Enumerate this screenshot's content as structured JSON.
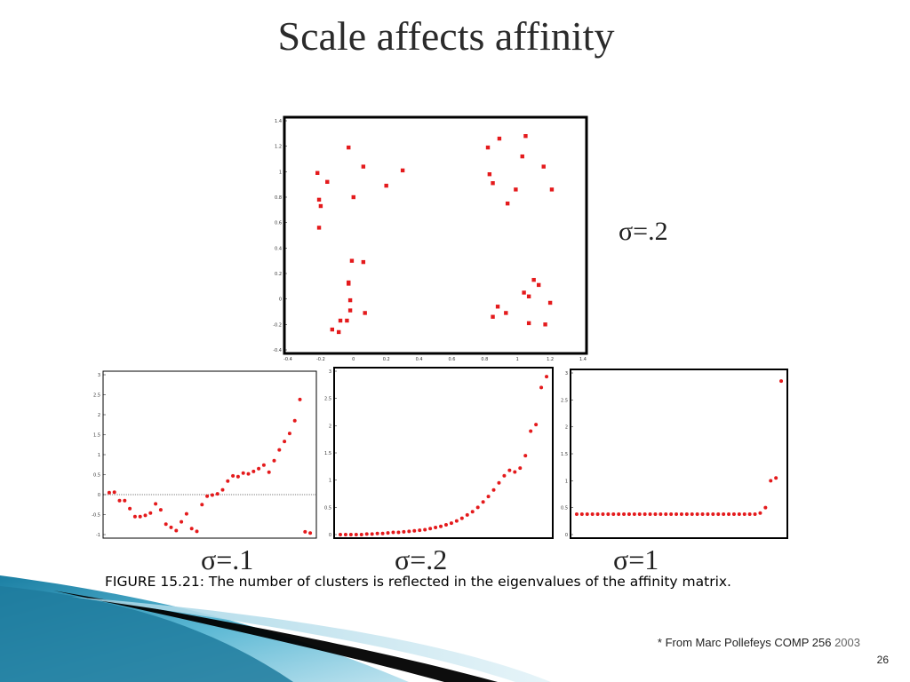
{
  "slide": {
    "title": "Scale affects affinity",
    "caption": "FIGURE 15.21: The number of clusters is reflected in the eigenvalues of the affinity matrix.",
    "credit": "* From Marc Pollefeys COMP 256",
    "credit_year": "2003",
    "page_number": "26"
  },
  "labels": {
    "main_sigma": "σ=.2",
    "sub_sigmas": [
      "σ=.1",
      "σ=.2",
      "σ=1"
    ]
  },
  "colors": {
    "points": "#e41a1c",
    "axis": "#000000"
  },
  "chart_data": [
    {
      "type": "scatter",
      "title": "",
      "xlim": [
        -0.4,
        1.4
      ],
      "ylim": [
        -0.4,
        1.4
      ],
      "x_ticks": [
        "-0.4",
        "-0.2",
        "0",
        "0.2",
        "0.4",
        "0.6",
        "0.8",
        "1",
        "1.2",
        "1.4"
      ],
      "y_ticks": [
        "-0.4",
        "-0.2",
        "0",
        "0.2",
        "0.4",
        "0.6",
        "0.8",
        "1",
        "1.2",
        "1.4"
      ],
      "points": [
        {
          "x": -0.22,
          "y": 0.99
        },
        {
          "x": -0.21,
          "y": 0.78
        },
        {
          "x": -0.2,
          "y": 0.73
        },
        {
          "x": -0.21,
          "y": 0.56
        },
        {
          "x": -0.16,
          "y": 0.92
        },
        {
          "x": -0.03,
          "y": 1.19
        },
        {
          "x": 0.0,
          "y": 0.8
        },
        {
          "x": 0.06,
          "y": 1.04
        },
        {
          "x": 0.2,
          "y": 0.89
        },
        {
          "x": 0.3,
          "y": 1.01
        },
        {
          "x": 0.82,
          "y": 1.19
        },
        {
          "x": 0.89,
          "y": 1.26
        },
        {
          "x": 0.83,
          "y": 0.98
        },
        {
          "x": 0.85,
          "y": 0.91
        },
        {
          "x": 1.03,
          "y": 1.12
        },
        {
          "x": 1.05,
          "y": 1.28
        },
        {
          "x": 1.16,
          "y": 1.04
        },
        {
          "x": 0.99,
          "y": 0.86
        },
        {
          "x": 0.94,
          "y": 0.75
        },
        {
          "x": 1.21,
          "y": 0.86
        },
        {
          "x": -0.13,
          "y": -0.24
        },
        {
          "x": -0.09,
          "y": -0.26
        },
        {
          "x": -0.08,
          "y": -0.17
        },
        {
          "x": -0.04,
          "y": -0.17
        },
        {
          "x": -0.03,
          "y": 0.13
        },
        {
          "x": -0.03,
          "y": 0.12
        },
        {
          "x": -0.01,
          "y": 0.3
        },
        {
          "x": -0.02,
          "y": -0.09
        },
        {
          "x": -0.02,
          "y": -0.01
        },
        {
          "x": 0.06,
          "y": 0.29
        },
        {
          "x": 0.07,
          "y": -0.11
        },
        {
          "x": 0.85,
          "y": -0.14
        },
        {
          "x": 0.88,
          "y": -0.06
        },
        {
          "x": 0.93,
          "y": -0.11
        },
        {
          "x": 1.04,
          "y": 0.05
        },
        {
          "x": 1.07,
          "y": 0.02
        },
        {
          "x": 1.1,
          "y": 0.15
        },
        {
          "x": 1.13,
          "y": 0.11
        },
        {
          "x": 1.07,
          "y": -0.19
        },
        {
          "x": 1.17,
          "y": -0.2
        },
        {
          "x": 1.2,
          "y": -0.03
        }
      ]
    },
    {
      "type": "scatter",
      "label": "σ=.1",
      "xlim": [
        0,
        40
      ],
      "ylim": [
        -1,
        3
      ],
      "y_ticks": [
        "-1",
        "-0.5",
        "0",
        "0.5",
        "1",
        "1.5",
        "2",
        "2.5",
        "3"
      ],
      "reference_line_y": 0,
      "values": [
        0.05,
        0.06,
        -0.15,
        -0.15,
        -0.35,
        -0.55,
        -0.55,
        -0.52,
        -0.46,
        -0.23,
        -0.38,
        -0.74,
        -0.82,
        -0.9,
        -0.68,
        -0.48,
        -0.85,
        -0.92,
        -0.25,
        -0.04,
        -0.01,
        0.02,
        0.12,
        0.34,
        0.47,
        0.45,
        0.54,
        0.52,
        0.58,
        0.65,
        0.74,
        0.56,
        0.85,
        1.12,
        1.33,
        1.53,
        1.85,
        2.38,
        -0.93,
        -0.96
      ]
    },
    {
      "type": "scatter",
      "label": "σ=.2",
      "xlim": [
        0,
        40
      ],
      "ylim": [
        0,
        3
      ],
      "y_ticks": [
        "0",
        "0.5",
        "1",
        "1.5",
        "2",
        "2.5",
        "3"
      ],
      "values": [
        0.0,
        0.0,
        0.0,
        0.0,
        0.0,
        0.01,
        0.01,
        0.02,
        0.02,
        0.03,
        0.04,
        0.04,
        0.05,
        0.06,
        0.07,
        0.08,
        0.09,
        0.11,
        0.13,
        0.15,
        0.18,
        0.21,
        0.25,
        0.3,
        0.36,
        0.42,
        0.5,
        0.6,
        0.7,
        0.82,
        0.95,
        1.08,
        1.18,
        1.15,
        1.22,
        1.45,
        1.9,
        2.02,
        2.7,
        2.9
      ]
    },
    {
      "type": "scatter",
      "label": "σ=1",
      "xlim": [
        0,
        40
      ],
      "ylim": [
        0,
        3
      ],
      "y_ticks": [
        "0",
        "0.5",
        "1",
        "1.5",
        "2",
        "2.5",
        "3"
      ],
      "values": [
        0.38,
        0.38,
        0.38,
        0.38,
        0.38,
        0.38,
        0.38,
        0.38,
        0.38,
        0.38,
        0.38,
        0.38,
        0.38,
        0.38,
        0.38,
        0.38,
        0.38,
        0.38,
        0.38,
        0.38,
        0.38,
        0.38,
        0.38,
        0.38,
        0.38,
        0.38,
        0.38,
        0.38,
        0.38,
        0.38,
        0.38,
        0.38,
        0.38,
        0.38,
        0.38,
        0.4,
        0.5,
        1.0,
        1.05,
        2.85
      ]
    }
  ]
}
